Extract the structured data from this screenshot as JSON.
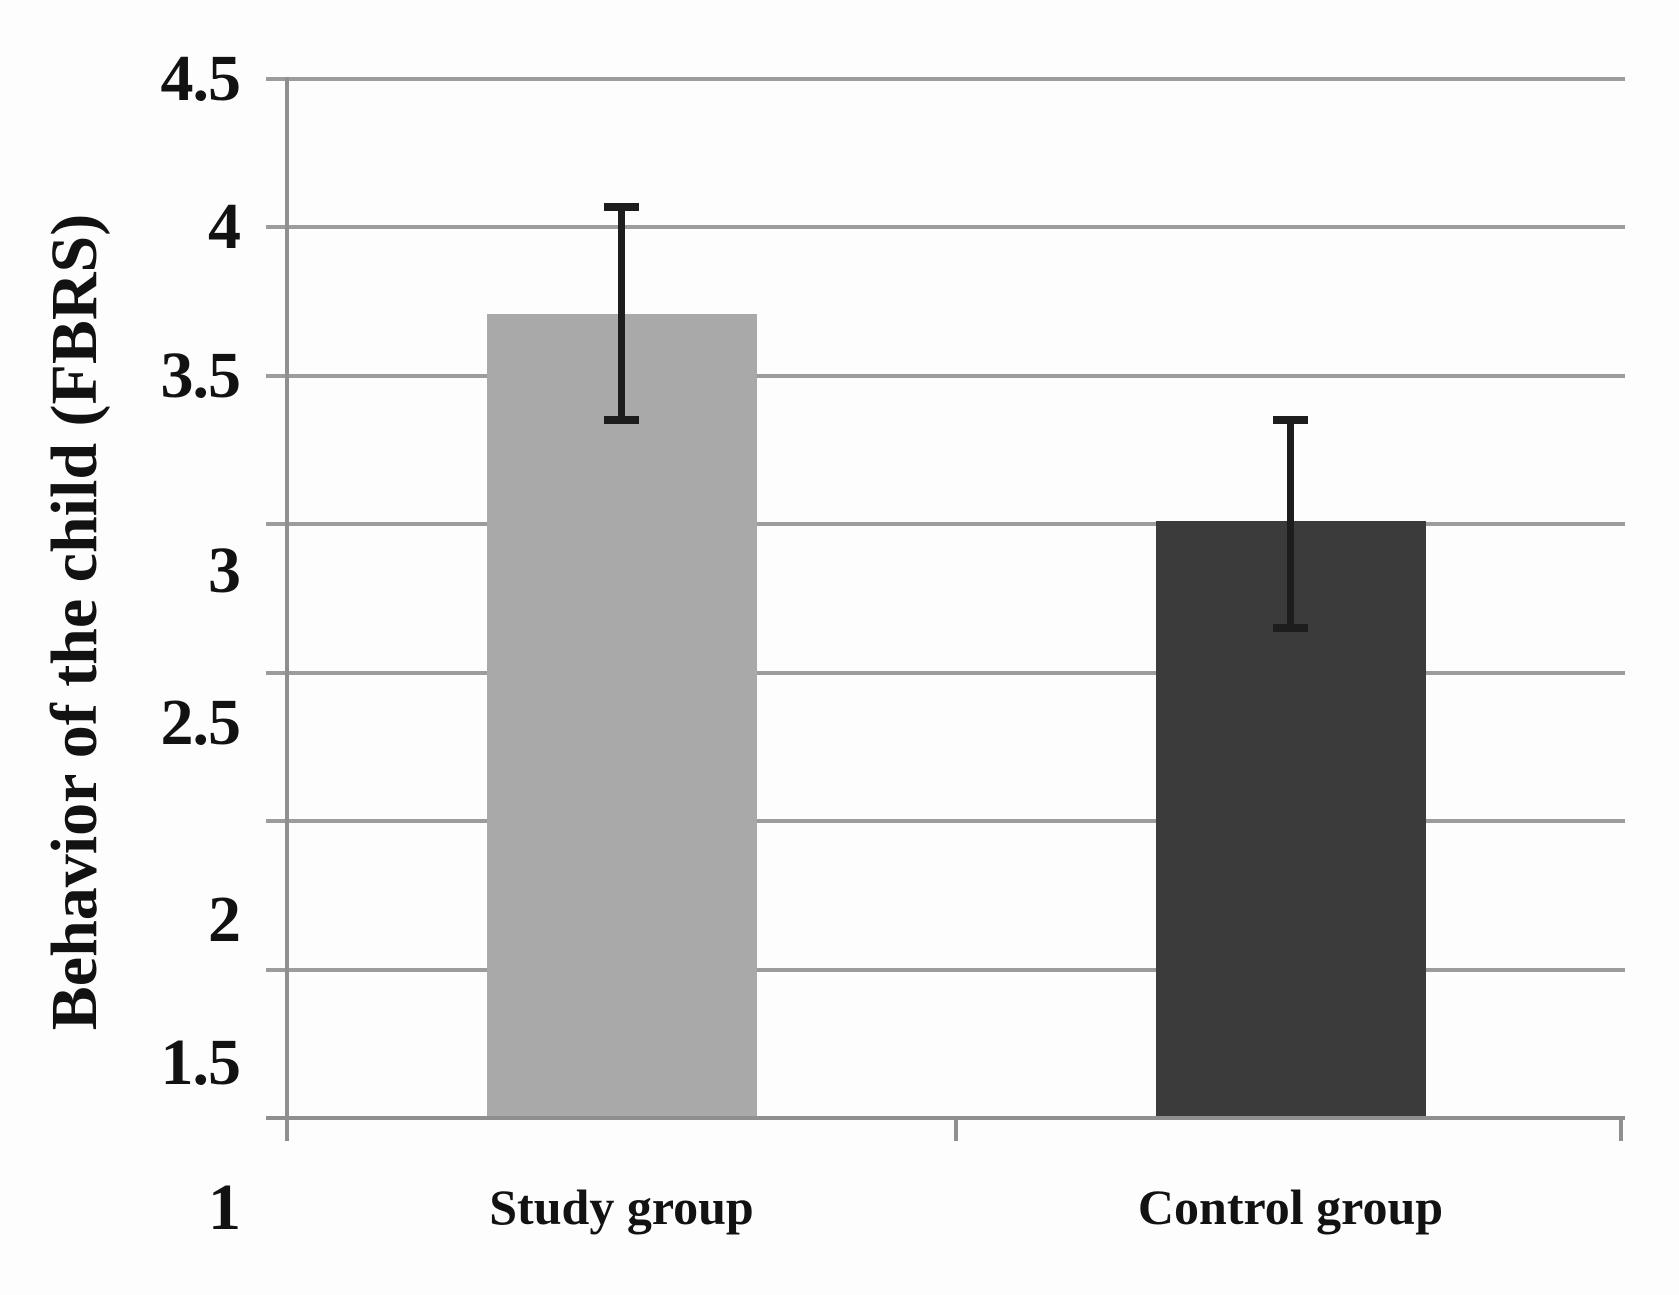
{
  "chart_data": {
    "type": "bar",
    "title": "",
    "xlabel": "",
    "ylabel": "Behavior of the child (FBRS)",
    "categories": [
      "Study group",
      "Control group"
    ],
    "series": [
      {
        "name": "Behavior of the child (FBRS)",
        "values": [
          3.71,
          3.01
        ],
        "error_low": [
          3.35,
          2.65
        ],
        "error_high": [
          4.07,
          3.35
        ]
      }
    ],
    "ylim": [
      1,
      4.5
    ],
    "yticks": [
      4.5,
      4,
      3.5,
      3,
      2.5,
      2,
      1.5,
      1
    ],
    "ytick_labels": [
      "4.5",
      "4",
      "3.5",
      "3",
      "2.5",
      "2",
      "1.5",
      "1"
    ],
    "grid": "horizontal",
    "legend": "none",
    "bar_colors": [
      "#a9a9a9",
      "#3b3b3b"
    ],
    "gridline_color": "#9c9c9c",
    "axis_color": "#8f8f8f",
    "error_bar_color": "#1d1d1d",
    "text_color": "#121212",
    "background_color": "#fdfdfd"
  }
}
